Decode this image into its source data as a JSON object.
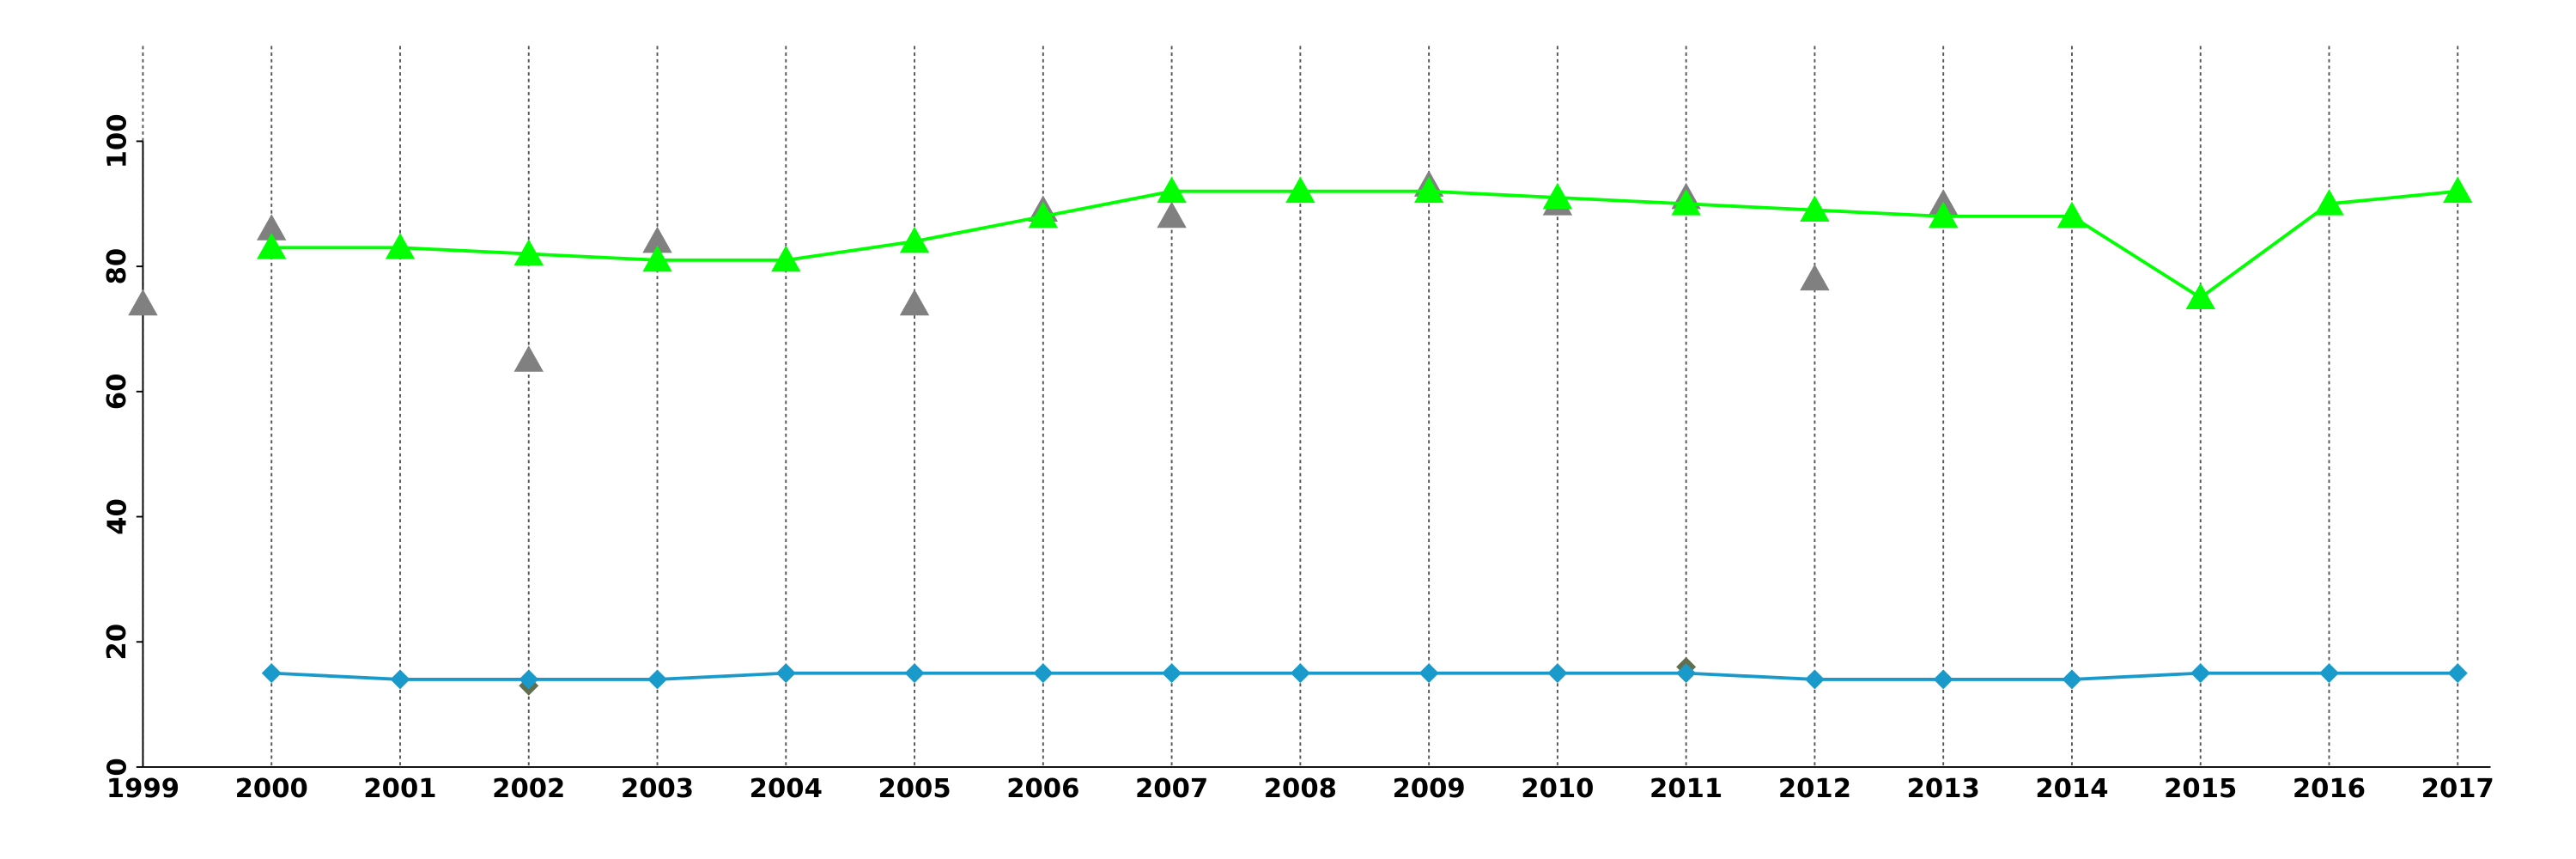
{
  "chart_data": {
    "type": "line",
    "x": [
      1999,
      2000,
      2001,
      2002,
      2003,
      2004,
      2005,
      2006,
      2007,
      2008,
      2009,
      2010,
      2011,
      2012,
      2013,
      2014,
      2015,
      2016,
      2017
    ],
    "xlim": [
      1999,
      2017
    ],
    "xticks": [
      1999,
      2000,
      2001,
      2002,
      2003,
      2004,
      2005,
      2006,
      2007,
      2008,
      2009,
      2010,
      2011,
      2012,
      2013,
      2014,
      2015,
      2016,
      2017
    ],
    "ylim": [
      0,
      100
    ],
    "yticks": [
      0,
      20,
      40,
      60,
      80,
      100
    ],
    "grid": "x",
    "series": [
      {
        "color": "#808080",
        "marker": "triangle",
        "line": false,
        "values": [
          74,
          86,
          null,
          65,
          84,
          null,
          74,
          89,
          88,
          null,
          93,
          90,
          91,
          78,
          90,
          null,
          null,
          null,
          null
        ]
      },
      {
        "color": "#00ff00",
        "marker": "triangle",
        "line": true,
        "values": [
          null,
          83,
          83,
          82,
          81,
          81,
          84,
          88,
          92,
          92,
          92,
          91,
          90,
          89,
          88,
          88,
          75,
          90,
          92
        ]
      },
      {
        "color": "#5f6f4f",
        "marker": "diamond",
        "line": false,
        "values": [
          null,
          null,
          null,
          13,
          null,
          null,
          null,
          null,
          null,
          null,
          null,
          null,
          16,
          null,
          null,
          null,
          null,
          null,
          null
        ]
      },
      {
        "color": "#1a9acb",
        "marker": "diamond",
        "line": true,
        "values": [
          null,
          15,
          14,
          14,
          14,
          15,
          15,
          15,
          15,
          15,
          15,
          15,
          15,
          14,
          14,
          14,
          15,
          15,
          15
        ]
      }
    ]
  }
}
